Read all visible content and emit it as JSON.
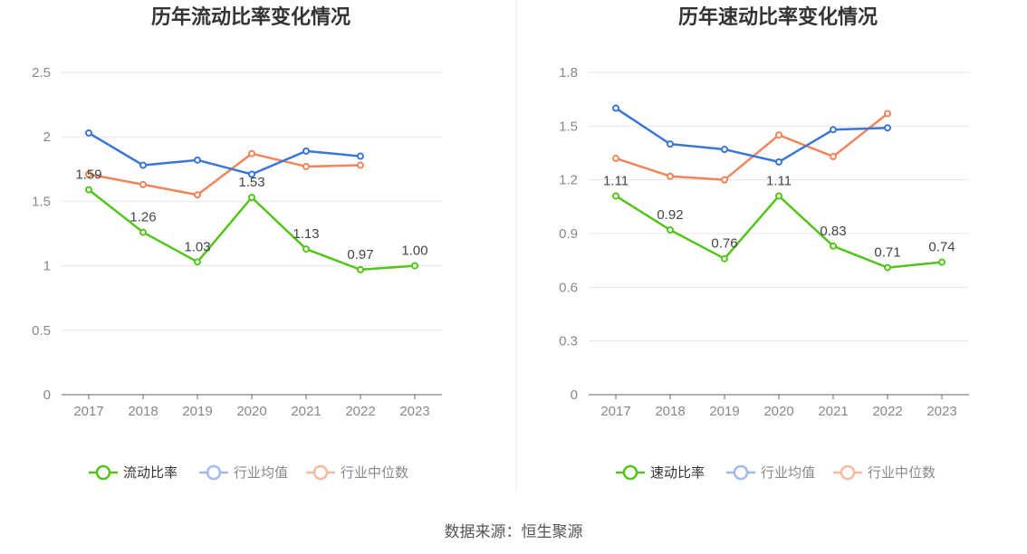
{
  "chart_data": [
    {
      "type": "line",
      "title": "历年流动比率变化情况",
      "categories": [
        "2017",
        "2018",
        "2019",
        "2020",
        "2021",
        "2022",
        "2023"
      ],
      "ylim": [
        0,
        2.5
      ],
      "yticks": [
        "0",
        "0.5",
        "1",
        "1.5",
        "2",
        "2.5"
      ],
      "ytick_values": [
        0,
        0.5,
        1,
        1.5,
        2,
        2.5
      ],
      "grid": true,
      "legend_position": "bottom",
      "series": [
        {
          "name": "流动比率",
          "values": [
            1.59,
            1.26,
            1.03,
            1.53,
            1.13,
            0.97,
            1.0
          ],
          "labels": [
            "1.59",
            "1.26",
            "1.03",
            "1.53",
            "1.13",
            "0.97",
            "1.00"
          ],
          "color": "#52c41a"
        },
        {
          "name": "行业均值",
          "values": [
            2.03,
            1.78,
            1.82,
            1.71,
            1.89,
            1.85,
            null
          ],
          "color": "#3a75d8"
        },
        {
          "name": "行业中位数",
          "values": [
            1.71,
            1.63,
            1.55,
            1.87,
            1.77,
            1.78,
            null
          ],
          "color": "#f0845a"
        }
      ]
    },
    {
      "type": "line",
      "title": "历年速动比率变化情况",
      "categories": [
        "2017",
        "2018",
        "2019",
        "2020",
        "2021",
        "2022",
        "2023"
      ],
      "ylim": [
        0,
        1.8
      ],
      "yticks": [
        "0",
        "0.3",
        "0.6",
        "0.9",
        "1.2",
        "1.5",
        "1.8"
      ],
      "ytick_values": [
        0,
        0.3,
        0.6,
        0.9,
        1.2,
        1.5,
        1.8
      ],
      "grid": true,
      "legend_position": "bottom",
      "series": [
        {
          "name": "速动比率",
          "values": [
            1.11,
            0.92,
            0.76,
            1.11,
            0.83,
            0.71,
            0.74
          ],
          "labels": [
            "1.11",
            "0.92",
            "0.76",
            "1.11",
            "0.83",
            "0.71",
            "0.74"
          ],
          "color": "#52c41a"
        },
        {
          "name": "行业均值",
          "values": [
            1.6,
            1.4,
            1.37,
            1.3,
            1.48,
            1.49,
            null
          ],
          "color": "#3a75d8"
        },
        {
          "name": "行业中位数",
          "values": [
            1.32,
            1.22,
            1.2,
            1.45,
            1.33,
            1.57,
            null
          ],
          "color": "#f0845a"
        }
      ]
    }
  ],
  "source": "数据来源：恒生聚源",
  "legend_faded_colors": {
    "行业均值": "#9fbaf0",
    "行业中位数": "#f8b8a0"
  }
}
